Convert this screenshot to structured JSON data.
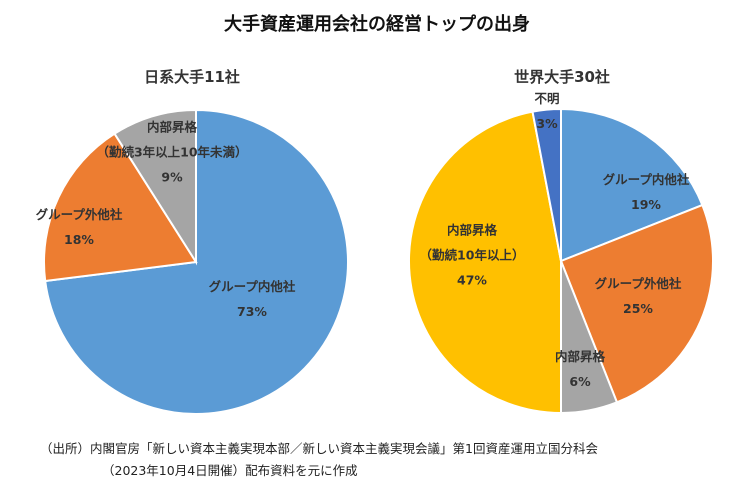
{
  "title": "大手資産運用会社の経営トップの出身",
  "chart_data": [
    {
      "type": "pie",
      "title": "日系大手11社",
      "slices": [
        {
          "label": "グループ内他社",
          "value": 73,
          "pct_label": "73%",
          "color": "#5B9BD5"
        },
        {
          "label": "グループ外他社",
          "value": 18,
          "pct_label": "18%",
          "color": "#ED7D31"
        },
        {
          "label": "内部昇格",
          "label2": "（勤続3年以上10年未満）",
          "value": 9,
          "pct_label": "9%",
          "color": "#A5A5A5"
        }
      ]
    },
    {
      "type": "pie",
      "title": "世界大手30社",
      "slices": [
        {
          "label": "グループ内他社",
          "value": 19,
          "pct_label": "19%",
          "color": "#5B9BD5"
        },
        {
          "label": "グループ外他社",
          "value": 25,
          "pct_label": "25%",
          "color": "#ED7D31"
        },
        {
          "label": "内部昇格",
          "value": 6,
          "pct_label": "6%",
          "color": "#A5A5A5"
        },
        {
          "label": "内部昇格",
          "label2": "（勤続10年以上）",
          "value": 47,
          "pct_label": "47%",
          "color": "#FFC000"
        },
        {
          "label": "不明",
          "value": 3,
          "pct_label": "3%",
          "color": "#4472C4"
        }
      ]
    }
  ],
  "source": {
    "line1": "（出所）内閣官房「新しい資本主義実現本部／新しい資本主義実現会議」第1回資産運用立国分科会",
    "line2": "（2023年10月4日開催）配布資料を元に作成"
  }
}
